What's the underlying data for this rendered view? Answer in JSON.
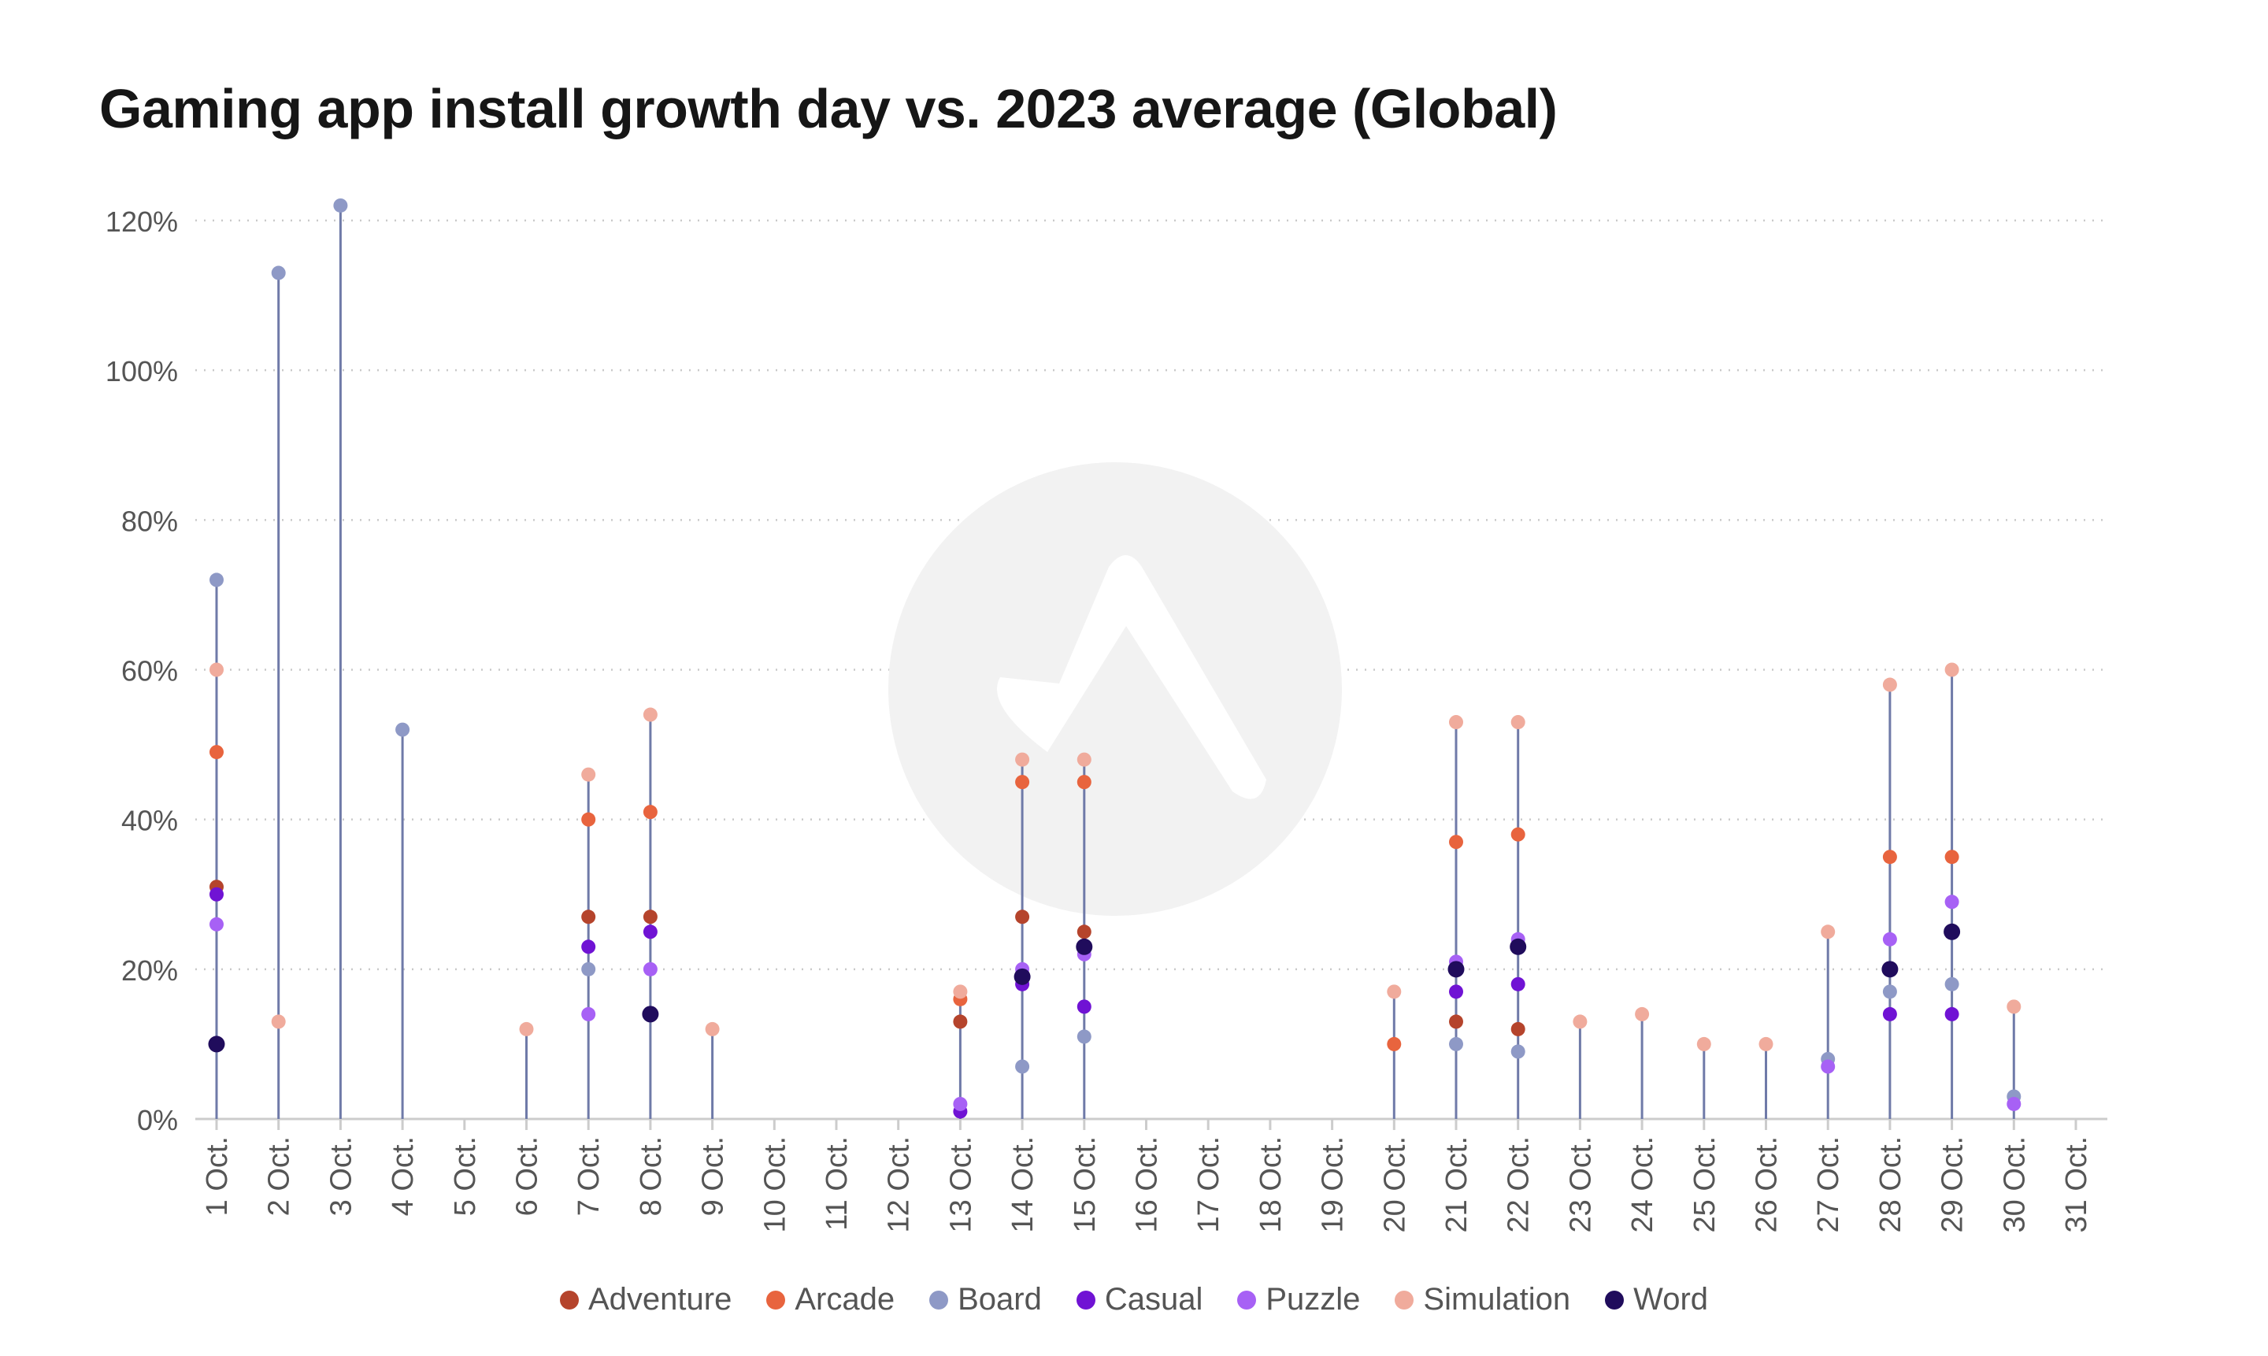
{
  "chart_data": {
    "type": "scatter",
    "title": "Gaming app install growth day vs. 2023 average (Global)",
    "ylim": [
      0,
      120
    ],
    "yticks": [
      0,
      20,
      40,
      60,
      80,
      100,
      120
    ],
    "ytick_suffix": "%",
    "grid": true,
    "legend_position": "bottom",
    "categories": [
      "1 Oct.",
      "2 Oct.",
      "3 Oct.",
      "4 Oct.",
      "5 Oct.",
      "6 Oct.",
      "7 Oct.",
      "8 Oct.",
      "9 Oct.",
      "10 Oct.",
      "11 Oct.",
      "12 Oct.",
      "13 Oct.",
      "14 Oct.",
      "15 Oct.",
      "16 Oct.",
      "17 Oct.",
      "18 Oct.",
      "19 Oct.",
      "20 Oct.",
      "21 Oct.",
      "22 Oct.",
      "23 Oct.",
      "24 Oct.",
      "25 Oct.",
      "26 Oct.",
      "27 Oct.",
      "28 Oct.",
      "29 Oct.",
      "30 Oct.",
      "31 Oct."
    ],
    "stem_color": "#6f7aa8",
    "series": [
      {
        "name": "Adventure",
        "color": "#b5442c",
        "values": [
          31,
          null,
          null,
          null,
          null,
          null,
          27,
          27,
          null,
          null,
          null,
          null,
          13,
          27,
          25,
          null,
          null,
          null,
          null,
          null,
          13,
          12,
          null,
          null,
          null,
          null,
          null,
          null,
          null,
          null,
          null
        ]
      },
      {
        "name": "Arcade",
        "color": "#e8643e",
        "values": [
          49,
          null,
          null,
          null,
          null,
          null,
          40,
          41,
          null,
          null,
          null,
          null,
          16,
          45,
          45,
          null,
          null,
          null,
          null,
          10,
          37,
          38,
          null,
          null,
          null,
          null,
          null,
          35,
          35,
          null,
          null
        ]
      },
      {
        "name": "Board",
        "color": "#8e99c6",
        "values": [
          72,
          113,
          122,
          52,
          null,
          null,
          20,
          null,
          null,
          null,
          null,
          null,
          null,
          7,
          11,
          null,
          null,
          null,
          null,
          null,
          10,
          9,
          null,
          null,
          null,
          null,
          8,
          17,
          18,
          3,
          null
        ]
      },
      {
        "name": "Casual",
        "color": "#7013d4",
        "values": [
          30,
          null,
          null,
          null,
          null,
          null,
          23,
          25,
          null,
          null,
          null,
          null,
          1,
          18,
          15,
          null,
          null,
          null,
          null,
          null,
          17,
          18,
          null,
          null,
          null,
          null,
          null,
          14,
          14,
          null,
          null
        ]
      },
      {
        "name": "Puzzle",
        "color": "#a761f5",
        "values": [
          26,
          null,
          null,
          null,
          null,
          null,
          14,
          20,
          null,
          null,
          null,
          null,
          2,
          20,
          22,
          null,
          null,
          null,
          null,
          null,
          21,
          24,
          null,
          null,
          null,
          null,
          7,
          24,
          29,
          2,
          null
        ]
      },
      {
        "name": "Simulation",
        "color": "#f0ab9c",
        "values": [
          60,
          13,
          null,
          null,
          null,
          12,
          46,
          54,
          12,
          null,
          null,
          null,
          17,
          48,
          48,
          null,
          null,
          null,
          null,
          17,
          53,
          53,
          13,
          14,
          10,
          10,
          25,
          58,
          60,
          15,
          null
        ]
      },
      {
        "name": "Word",
        "color": "#200c5c",
        "values": [
          10,
          null,
          null,
          null,
          null,
          null,
          null,
          14,
          null,
          null,
          null,
          null,
          null,
          19,
          23,
          null,
          null,
          null,
          null,
          null,
          20,
          23,
          null,
          null,
          null,
          null,
          null,
          20,
          25,
          null,
          null
        ]
      }
    ]
  }
}
